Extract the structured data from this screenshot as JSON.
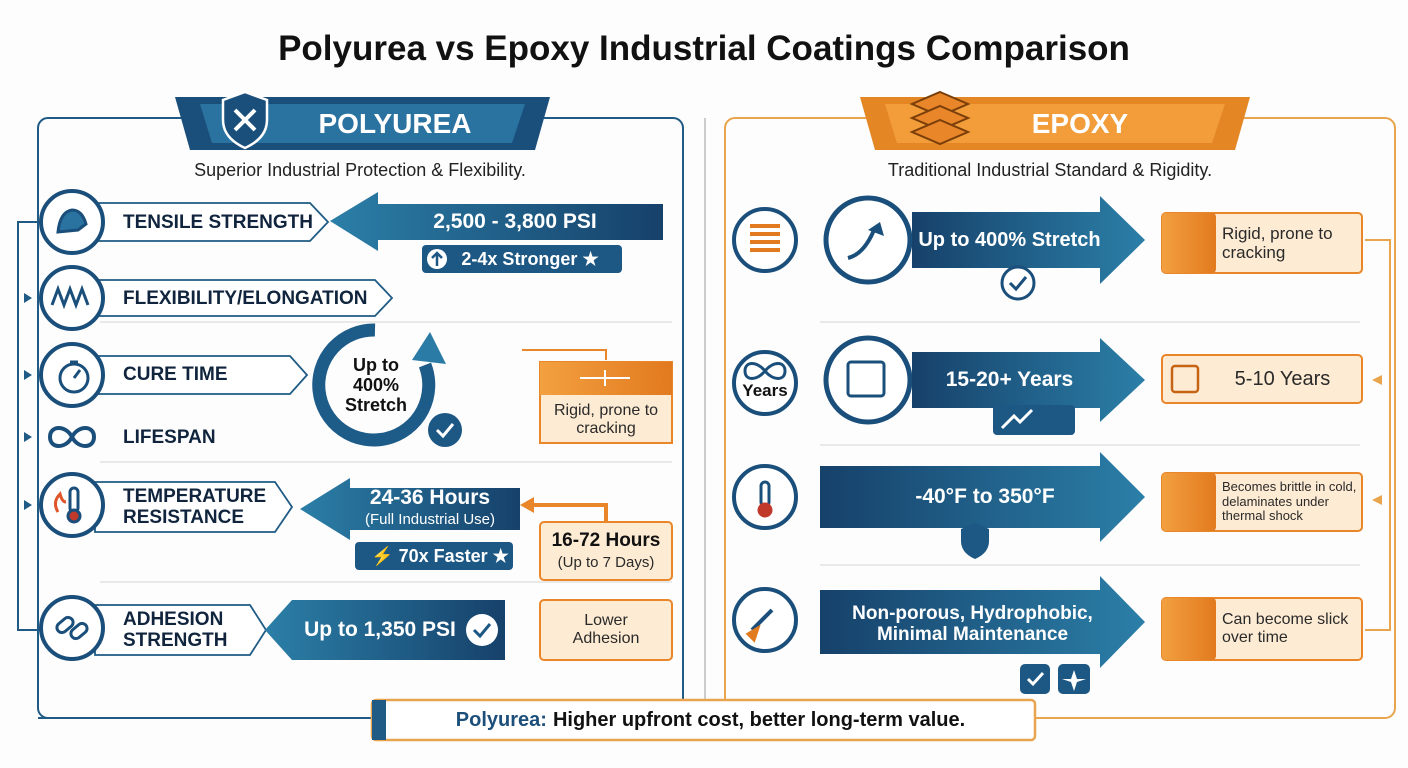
{
  "title": "Polyurea vs Epoxy Industrial Coatings Comparison",
  "polyurea": {
    "header": "POLYUREA",
    "subtitle": "Superior Industrial Protection & Flexibility.",
    "labels": [
      "TENSILE STRENGTH",
      "FLEXIBILITY/ELONGATION",
      "CURE TIME",
      "LIFESPAN",
      "TEMPERATURE RESISTANCE",
      "ADHESION STRENGTH"
    ],
    "tensile": {
      "value": "2,500 - 3,800 PSI",
      "badge": "2-4x Stronger ★"
    },
    "stretch_circle": "Up to 400% Stretch",
    "rigid_box": "Rigid, prone to cracking",
    "cure": {
      "value": "24-36 Hours",
      "note": "(Full Industrial Use)",
      "badge": "⚡ 70x Faster ★"
    },
    "epoxy_cure": {
      "value": "16-72 Hours",
      "note": "(Up to 7 Days)"
    },
    "adhesion": {
      "value": "Up to 1,350 PSI",
      "epoxy": "Lower Adhesion"
    }
  },
  "epoxy": {
    "header": "EPOXY",
    "subtitle": "Traditional Industrial Standard & Rigidity.",
    "rows": [
      {
        "arrow": "Up to 400% Stretch",
        "box": "Rigid, prone to cracking"
      },
      {
        "icon_label": "Years",
        "arrow": "15-20+ Years",
        "box": "5-10 Years"
      },
      {
        "arrow": "-40°F to 350°F",
        "box": "Becomes brittle in cold, delaminates under thermal shock"
      },
      {
        "arrow": "Non-porous, Hydrophobic, Minimal Maintenance",
        "box": "Can become slick over time"
      }
    ]
  },
  "footer": {
    "highlight": "Polyurea:",
    "text": "Higher upfront cost, better long-term value."
  }
}
